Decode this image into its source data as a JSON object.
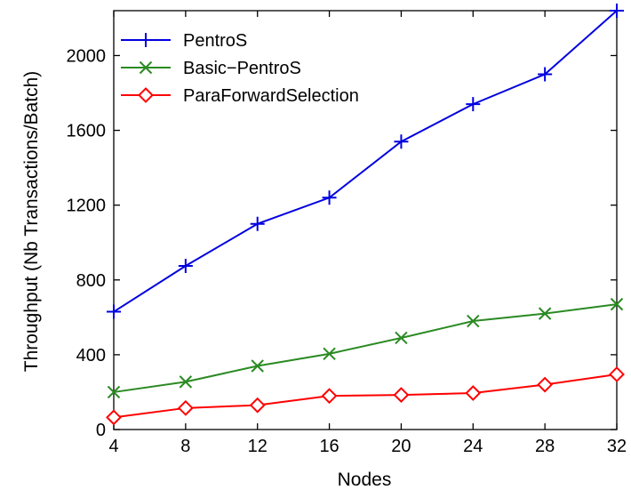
{
  "chart_data": {
    "type": "line",
    "title": "",
    "xlabel": "Nodes",
    "ylabel": "Throughput (Nb Transactions/Batch)",
    "x": [
      4,
      8,
      12,
      16,
      20,
      24,
      28,
      32
    ],
    "xlim": [
      4,
      32
    ],
    "ylim": [
      0,
      2240
    ],
    "xticks": [
      "4",
      "8",
      "12",
      "16",
      "20",
      "24",
      "28",
      "32"
    ],
    "yticks": [
      "0",
      "400",
      "800",
      "1200",
      "1600",
      "2000"
    ],
    "legend_position": "top-left",
    "grid": false,
    "series": [
      {
        "name": "PentroS",
        "color": "#0000e0",
        "marker": "plus",
        "values": [
          630,
          875,
          1100,
          1240,
          1540,
          1740,
          1900,
          2240
        ]
      },
      {
        "name": "Basic−PentroS",
        "color": "#2a8a22",
        "marker": "x",
        "values": [
          200,
          255,
          340,
          405,
          490,
          580,
          620,
          670
        ]
      },
      {
        "name": "ParaForwardSelection",
        "color": "#ff0000",
        "marker": "diamond",
        "values": [
          65,
          115,
          130,
          180,
          185,
          195,
          240,
          295
        ]
      }
    ]
  }
}
